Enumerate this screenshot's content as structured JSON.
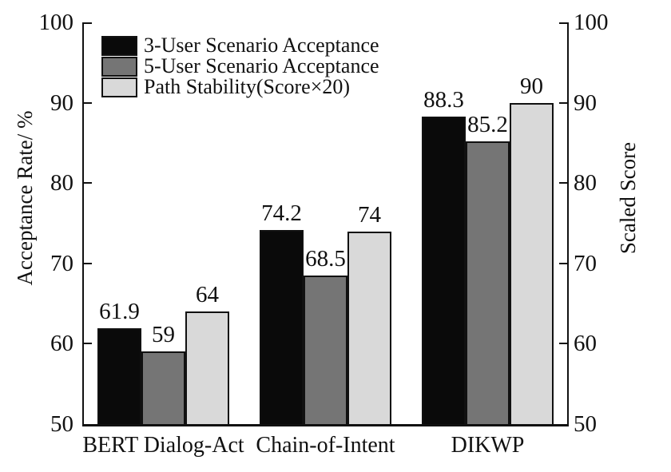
{
  "chart_data": {
    "type": "bar",
    "title": "",
    "categories": [
      "BERT Dialog-Act",
      "Chain-of-Intent",
      "DIKWP"
    ],
    "series": [
      {
        "name": "3-User Scenario Acceptance",
        "color": "#0a0a0a",
        "values": [
          61.9,
          74.2,
          88.3
        ]
      },
      {
        "name": "5-User Scenario Acceptance",
        "color": "#757575",
        "values": [
          59,
          68.5,
          85.2
        ]
      },
      {
        "name": "Path Stability(Score×20)",
        "color": "#d9d9d9",
        "values": [
          64,
          74,
          90
        ]
      }
    ],
    "ylabel_left": "Acceptance Rate/ %",
    "ylabel_right": "Scaled Score",
    "ylim": [
      50,
      100
    ],
    "yticks": [
      50,
      60,
      70,
      80,
      90,
      100
    ],
    "grid": false,
    "legend_position": "top-left",
    "axis_color": "#111111",
    "bar_edge_color": "#111111"
  }
}
